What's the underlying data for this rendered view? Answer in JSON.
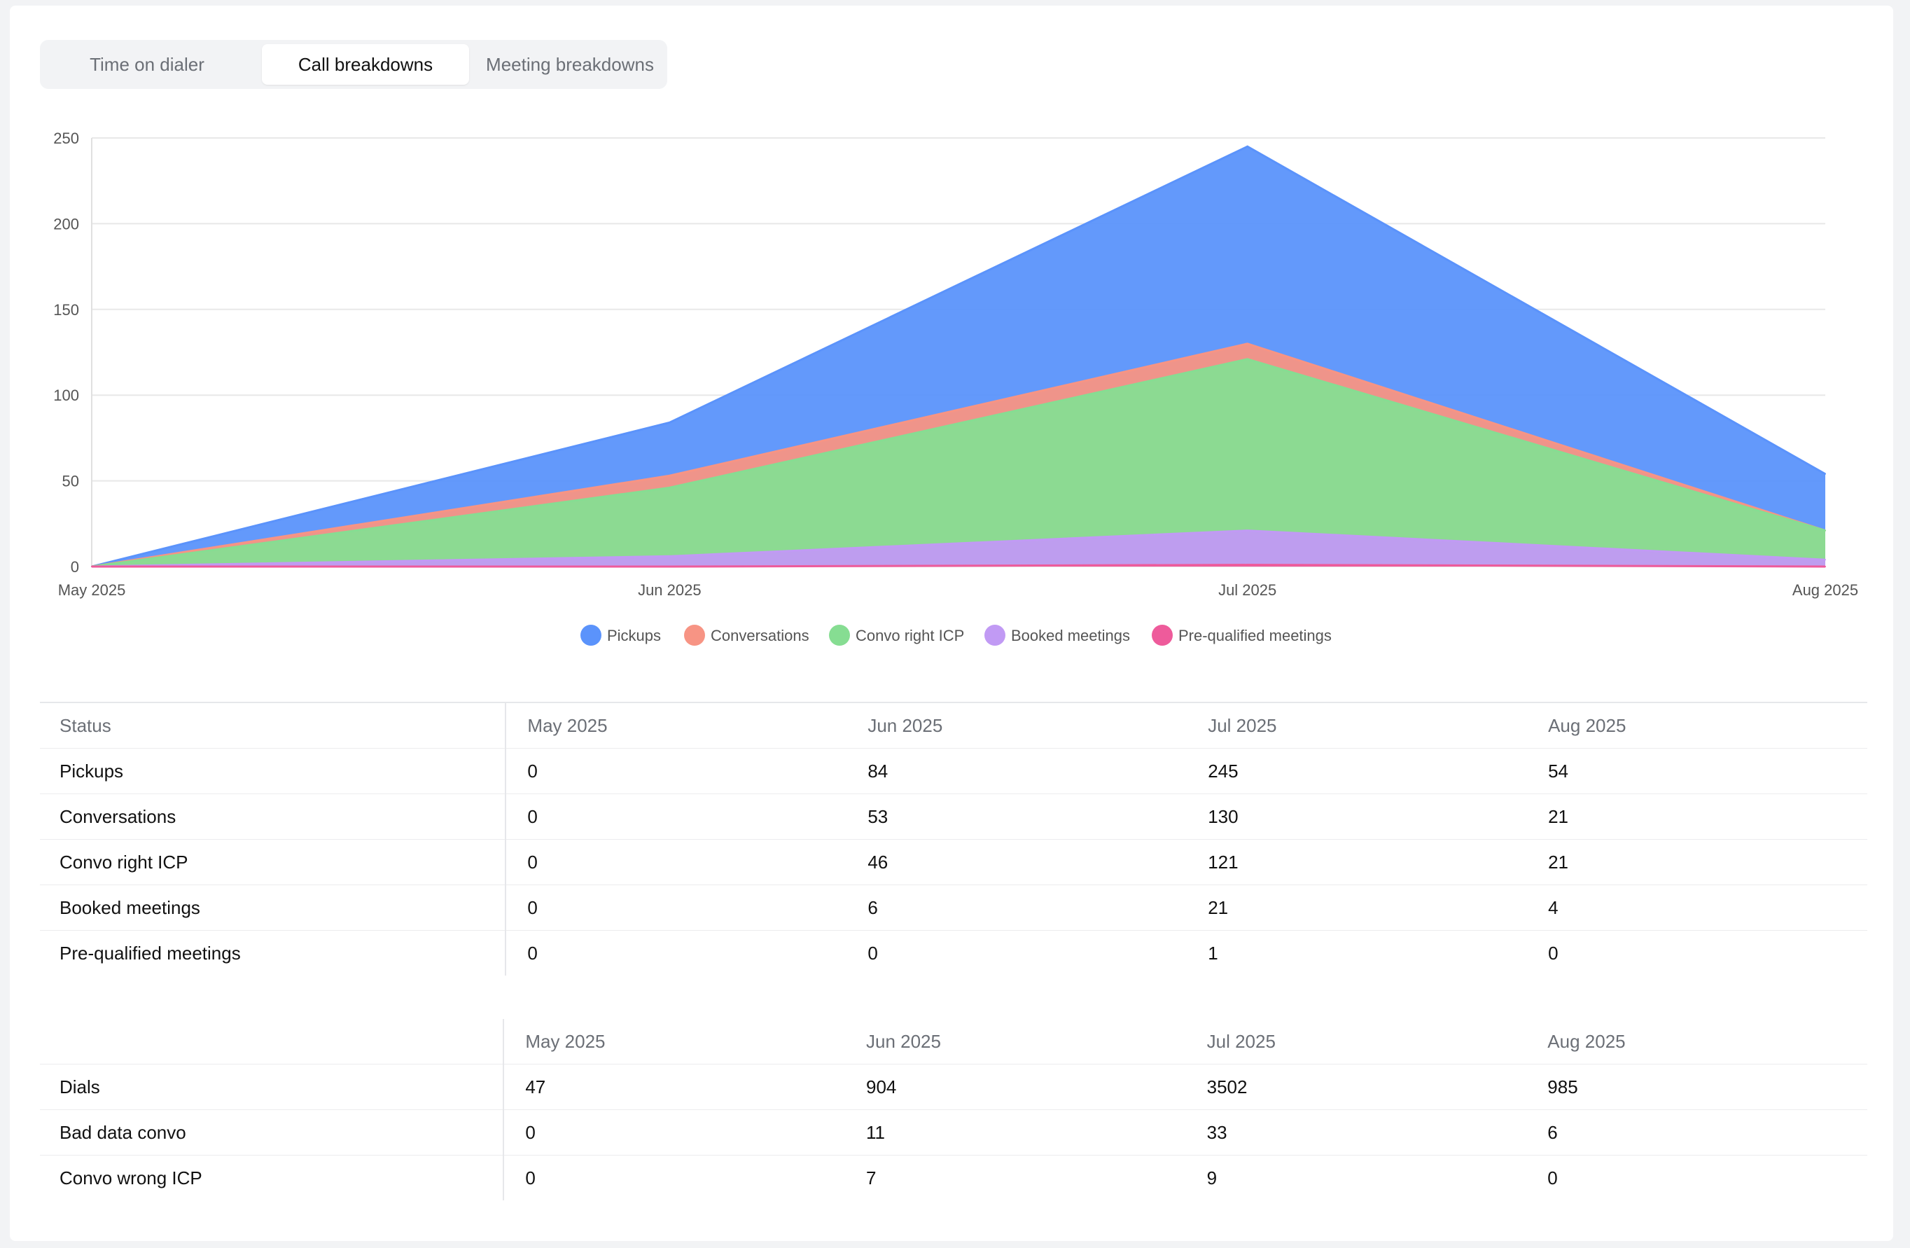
{
  "tabs": [
    {
      "label": "Time on dialer",
      "active": false
    },
    {
      "label": "Call breakdowns",
      "active": true
    },
    {
      "label": "Meeting breakdowns",
      "active": false
    }
  ],
  "chart_data": {
    "type": "area",
    "stacked": false,
    "x": [
      "May 2025",
      "Jun 2025",
      "Jul 2025",
      "Aug 2025"
    ],
    "ylim": [
      0,
      250
    ],
    "yticks": [
      0,
      50,
      100,
      150,
      200,
      250
    ],
    "grid": true,
    "legend_position": "bottom",
    "series": [
      {
        "name": "Pickups",
        "values": [
          0,
          84,
          245,
          54
        ],
        "color": "#5b93fb"
      },
      {
        "name": "Conversations",
        "values": [
          0,
          53,
          130,
          21
        ],
        "color": "#f79484"
      },
      {
        "name": "Convo right ICP",
        "values": [
          0,
          46,
          121,
          21
        ],
        "color": "#86dd92"
      },
      {
        "name": "Booked meetings",
        "values": [
          0,
          6,
          21,
          4
        ],
        "color": "#c19af4"
      },
      {
        "name": "Pre-qualified meetings",
        "values": [
          0,
          0,
          1,
          0
        ],
        "color": "#ee5b9b"
      }
    ]
  },
  "status_table": {
    "headers": [
      "Status",
      "May 2025",
      "Jun 2025",
      "Jul 2025",
      "Aug 2025"
    ],
    "rows": [
      [
        "Pickups",
        "0",
        "84",
        "245",
        "54"
      ],
      [
        "Conversations",
        "0",
        "53",
        "130",
        "21"
      ],
      [
        "Convo right ICP",
        "0",
        "46",
        "121",
        "21"
      ],
      [
        "Booked meetings",
        "0",
        "6",
        "21",
        "4"
      ],
      [
        "Pre-qualified meetings",
        "0",
        "0",
        "1",
        "0"
      ]
    ]
  },
  "dials_table": {
    "headers": [
      "",
      "May 2025",
      "Jun 2025",
      "Jul 2025",
      "Aug 2025"
    ],
    "rows": [
      [
        "Dials",
        "47",
        "904",
        "3502",
        "985"
      ],
      [
        "Bad data convo",
        "0",
        "11",
        "33",
        "6"
      ],
      [
        "Convo wrong ICP",
        "0",
        "7",
        "9",
        "0"
      ]
    ]
  }
}
